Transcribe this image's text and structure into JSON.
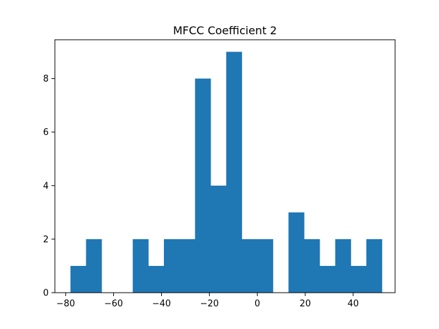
{
  "chart_data": {
    "type": "bar",
    "title": "MFCC Coefficient 2",
    "xlabel": "",
    "ylabel": "",
    "xlim": [
      -84.5,
      57.5
    ],
    "ylim": [
      0,
      9.45
    ],
    "bar_color": "#1f77b4",
    "grid": false,
    "bin_edges": [
      -78.0,
      -71.5,
      -65.0,
      -58.5,
      -52.0,
      -45.5,
      -39.0,
      -32.5,
      -26.0,
      -19.5,
      -13.0,
      -6.5,
      0.0,
      6.5,
      13.0,
      19.5,
      26.0,
      32.5,
      39.0,
      45.5,
      52.0
    ],
    "counts": [
      1,
      2,
      0,
      0,
      2,
      1,
      2,
      2,
      8,
      4,
      9,
      2,
      2,
      0,
      3,
      2,
      1,
      2,
      1,
      2
    ],
    "x_ticks": [
      -80,
      -60,
      -40,
      -20,
      0,
      20,
      40
    ],
    "x_tick_labels": [
      "−80",
      "−60",
      "−40",
      "−20",
      "0",
      "20",
      "40"
    ],
    "y_ticks": [
      0,
      2,
      4,
      6,
      8
    ],
    "y_tick_labels": [
      "0",
      "2",
      "4",
      "6",
      "8"
    ]
  }
}
